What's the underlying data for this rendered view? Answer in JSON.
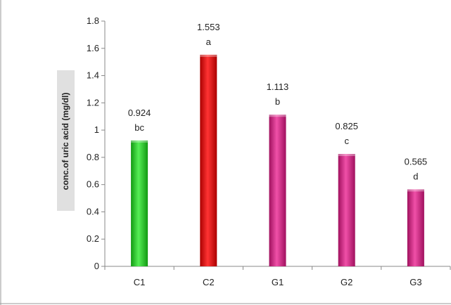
{
  "chart_data": {
    "type": "bar",
    "title": "",
    "xlabel": "",
    "ylabel": "conc.of uric acid (mg/dl)",
    "ylim": [
      0,
      1.8
    ],
    "yticks": [
      "0",
      "0.2",
      "0.4",
      "0.6",
      "0.8",
      "1",
      "1.2",
      "1.4",
      "1.6",
      "1.8"
    ],
    "categories": [
      "C1",
      "C2",
      "G1",
      "G2",
      "G3"
    ],
    "values": [
      0.924,
      1.553,
      1.113,
      0.825,
      0.565
    ],
    "value_labels": [
      "0.924",
      "1.553",
      "1.113",
      "0.825",
      "0.565"
    ],
    "group_letters": [
      "bc",
      "a",
      "b",
      "c",
      "d"
    ],
    "colors": [
      "#22cc22",
      "#ee1111",
      "#e0228a",
      "#e0228a",
      "#e0228a"
    ],
    "grid": false,
    "legend": "none"
  }
}
